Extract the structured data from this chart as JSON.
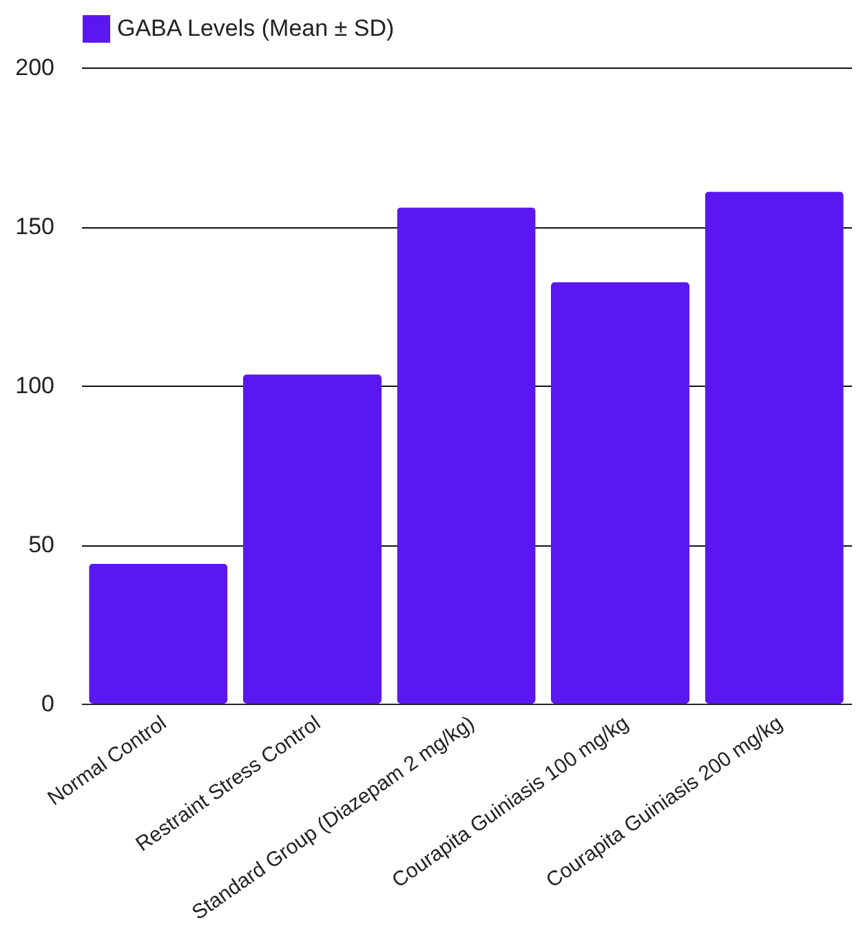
{
  "chart_data": {
    "type": "bar",
    "categories": [
      "Normal Control",
      "Restraint Stress Control",
      "Standard Group (Diazepam 2 mg/kg)",
      "Courapita Guiniasis 100 mg/kg",
      "Courapita Guiniasis 200 mg/kg"
    ],
    "series": [
      {
        "name": "GABA Levels (Mean ± SD)",
        "color": "#5b17ef",
        "values": [
          44,
          103.5,
          156,
          132.5,
          161
        ]
      }
    ],
    "ylim": [
      0,
      200
    ],
    "yticks": [
      0,
      50,
      100,
      150,
      200
    ],
    "grid": "y",
    "legend": "top"
  }
}
